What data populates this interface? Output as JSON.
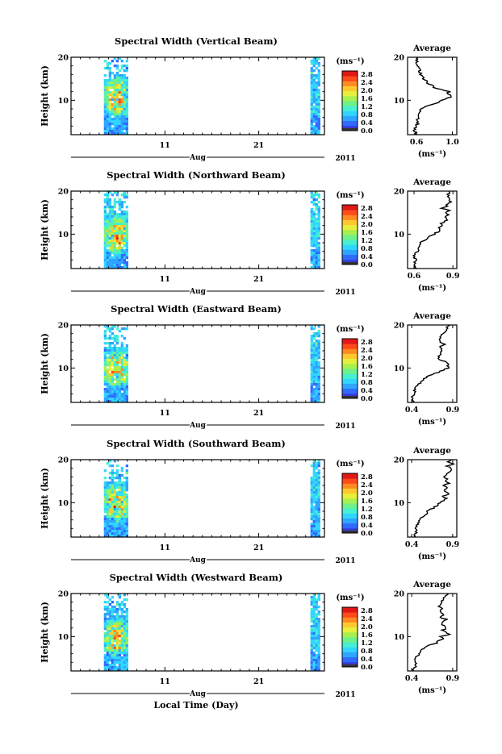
{
  "chart_data": [
    {
      "type": "heatmap",
      "title": "Spectral Width (Vertical Beam)",
      "ylabel": "Height (km)",
      "ylim": [
        2,
        20
      ],
      "y_ticks": [
        "10",
        "20"
      ],
      "x_tick_labels": [
        "11",
        "21"
      ],
      "x_month_label": "Aug",
      "year_label": "2011",
      "colorbar": {
        "unit": "(ms⁻¹)",
        "ticks": [
          "0.0",
          "0.4",
          "0.8",
          "1.2",
          "1.6",
          "2.0",
          "2.4",
          "2.8"
        ]
      },
      "data_spans": [
        [
          4.5,
          7.0
        ],
        [
          26.5,
          27.5
        ]
      ],
      "hotspot": {
        "x": 5.7,
        "height": 11
      },
      "average": {
        "title": "Average",
        "xlabel": "(ms⁻¹)",
        "x_ticks": [
          0.6,
          1.0
        ],
        "x_tick_labels": [
          "0.6",
          "1.0"
        ],
        "xlim": [
          0.5,
          1.05
        ],
        "profile": {
          "height": [
            2,
            3,
            4,
            5,
            6,
            7,
            8,
            8.5,
            9,
            9.5,
            10,
            10.5,
            11,
            11.5,
            12,
            12.5,
            13,
            13.5,
            14,
            14.5,
            15,
            15.5,
            16,
            16.5,
            17,
            17.5,
            18,
            19,
            20
          ],
          "value": [
            0.6,
            0.58,
            0.6,
            0.62,
            0.61,
            0.63,
            0.66,
            0.7,
            0.78,
            0.85,
            0.88,
            0.95,
            1.0,
            0.93,
            0.97,
            0.87,
            0.8,
            0.77,
            0.7,
            0.72,
            0.68,
            0.66,
            0.65,
            0.63,
            0.63,
            0.62,
            0.6,
            0.6,
            0.62
          ]
        }
      }
    },
    {
      "type": "heatmap",
      "title": "Spectral Width (Northward Beam)",
      "ylabel": "Height (km)",
      "ylim": [
        2,
        20
      ],
      "y_ticks": [
        "10",
        "20"
      ],
      "x_tick_labels": [
        "11",
        "21"
      ],
      "x_month_label": "Aug",
      "year_label": "2011",
      "colorbar": {
        "unit": "(ms⁻¹)",
        "ticks": [
          "0.0",
          "0.4",
          "0.8",
          "1.2",
          "1.6",
          "2.0",
          "2.4",
          "2.8"
        ]
      },
      "data_spans": [
        [
          4.5,
          7.0
        ],
        [
          26.5,
          27.5
        ]
      ],
      "hotspot": {
        "x": 5.7,
        "height": 10
      },
      "average": {
        "title": "Average",
        "xlabel": "(ms⁻¹)",
        "x_ticks": [
          0.6,
          0.9
        ],
        "x_tick_labels": [
          "0.6",
          "0.9"
        ],
        "xlim": [
          0.55,
          0.93
        ],
        "profile": {
          "height": [
            2,
            3,
            4,
            5,
            6,
            7,
            8,
            8.5,
            9,
            9.5,
            10,
            10.5,
            11,
            11.5,
            12,
            12.5,
            13,
            13.5,
            14,
            14.5,
            15,
            15.5,
            16,
            16.5,
            17,
            17.5,
            18,
            19,
            19.5,
            20
          ],
          "value": [
            0.62,
            0.6,
            0.61,
            0.6,
            0.63,
            0.64,
            0.65,
            0.67,
            0.7,
            0.72,
            0.76,
            0.78,
            0.8,
            0.79,
            0.82,
            0.81,
            0.84,
            0.86,
            0.83,
            0.86,
            0.84,
            0.87,
            0.82,
            0.85,
            0.86,
            0.88,
            0.87,
            0.86,
            0.87,
            0.86
          ]
        }
      }
    },
    {
      "type": "heatmap",
      "title": "Spectral Width (Eastward Beam)",
      "ylabel": "Height (km)",
      "ylim": [
        2,
        20
      ],
      "y_ticks": [
        "10",
        "20"
      ],
      "x_tick_labels": [
        "11",
        "21"
      ],
      "x_month_label": "Aug",
      "year_label": "2011",
      "colorbar": {
        "unit": "(ms⁻¹)",
        "ticks": [
          "0.0",
          "0.4",
          "0.8",
          "1.2",
          "1.6",
          "2.0",
          "2.4",
          "2.8"
        ]
      },
      "data_spans": [
        [
          4.5,
          7.0
        ],
        [
          26.5,
          27.5
        ]
      ],
      "hotspot": {
        "x": 5.7,
        "height": 10
      },
      "average": {
        "title": "Average",
        "xlabel": "(ms⁻¹)",
        "x_ticks": [
          0.4,
          0.9
        ],
        "x_tick_labels": [
          "0.4",
          "0.9"
        ],
        "xlim": [
          0.35,
          0.95
        ],
        "profile": {
          "height": [
            2,
            3,
            4,
            5,
            6,
            7,
            7.5,
            8,
            8.5,
            9,
            9.5,
            10,
            10.5,
            11,
            11.5,
            12,
            12.5,
            13,
            14,
            15,
            15.5,
            16,
            17,
            18,
            18.5,
            19,
            19.5,
            20
          ],
          "value": [
            0.42,
            0.4,
            0.42,
            0.44,
            0.47,
            0.52,
            0.55,
            0.6,
            0.66,
            0.72,
            0.78,
            0.85,
            0.82,
            0.86,
            0.8,
            0.75,
            0.72,
            0.74,
            0.77,
            0.73,
            0.8,
            0.76,
            0.75,
            0.78,
            0.8,
            0.82,
            0.84,
            0.86
          ]
        }
      }
    },
    {
      "type": "heatmap",
      "title": "Spectral Width (Southward Beam)",
      "ylabel": "Height (km)",
      "ylim": [
        2,
        20
      ],
      "y_ticks": [
        "10",
        "20"
      ],
      "x_tick_labels": [
        "11",
        "21"
      ],
      "x_month_label": "Aug",
      "year_label": "2011",
      "colorbar": {
        "unit": "(ms⁻¹)",
        "ticks": [
          "0.0",
          "0.4",
          "0.8",
          "1.2",
          "1.6",
          "2.0",
          "2.4",
          "2.8"
        ]
      },
      "data_spans": [
        [
          4.5,
          7.0
        ],
        [
          26.5,
          27.5
        ]
      ],
      "hotspot": {
        "x": 5.7,
        "height": 10
      },
      "average": {
        "title": "Average",
        "xlabel": "(ms⁻¹)",
        "x_ticks": [
          0.4,
          0.9
        ],
        "x_tick_labels": [
          "0.4",
          "0.9"
        ],
        "xlim": [
          0.35,
          0.95
        ],
        "profile": {
          "height": [
            2,
            3,
            4,
            5,
            6,
            7,
            8,
            8.5,
            9,
            9.5,
            10,
            10.5,
            11,
            11.5,
            12,
            13,
            13.5,
            14,
            14.5,
            15,
            15.5,
            16,
            16.5,
            17,
            18,
            18.5,
            19,
            19.5,
            20
          ],
          "value": [
            0.42,
            0.46,
            0.44,
            0.48,
            0.5,
            0.55,
            0.6,
            0.64,
            0.68,
            0.72,
            0.75,
            0.78,
            0.82,
            0.78,
            0.85,
            0.8,
            0.82,
            0.78,
            0.85,
            0.8,
            0.84,
            0.78,
            0.82,
            0.86,
            0.88,
            0.84,
            0.9,
            0.82,
            0.9
          ]
        }
      }
    },
    {
      "type": "heatmap",
      "title": "Spectral Width (Westward Beam)",
      "ylabel": "Height (km)",
      "ylim": [
        2,
        20
      ],
      "y_ticks": [
        "10",
        "20"
      ],
      "x_tick_labels": [
        "11",
        "21"
      ],
      "x_month_label": "Aug",
      "year_label": "2011",
      "colorbar": {
        "unit": "(ms⁻¹)",
        "ticks": [
          "0.0",
          "0.4",
          "0.8",
          "1.2",
          "1.6",
          "2.0",
          "2.4",
          "2.8"
        ]
      },
      "data_spans": [
        [
          4.5,
          7.0
        ],
        [
          26.5,
          27.5
        ]
      ],
      "hotspot": {
        "x": 5.7,
        "height": 10
      },
      "xlabel": "Local Time (Day)",
      "average": {
        "title": "Average",
        "xlabel": "(ms⁻¹)",
        "x_ticks": [
          0.4,
          0.9
        ],
        "x_tick_labels": [
          "0.4",
          "0.9"
        ],
        "xlim": [
          0.35,
          0.95
        ],
        "profile": {
          "height": [
            2,
            3,
            4,
            5,
            6,
            7,
            7.5,
            8,
            8.5,
            9,
            9.5,
            10,
            10.5,
            11,
            11.5,
            12,
            13,
            13.5,
            14,
            14.5,
            15,
            16,
            16.5,
            17,
            18,
            19,
            19.5,
            20
          ],
          "value": [
            0.42,
            0.44,
            0.46,
            0.45,
            0.5,
            0.53,
            0.58,
            0.62,
            0.7,
            0.72,
            0.8,
            0.76,
            0.86,
            0.82,
            0.78,
            0.82,
            0.76,
            0.8,
            0.82,
            0.74,
            0.8,
            0.75,
            0.78,
            0.72,
            0.76,
            0.8,
            0.82,
            0.85
          ]
        }
      }
    }
  ],
  "colormap": [
    "#2b2b8f",
    "#3a3ad6",
    "#2f6bff",
    "#2fa5ff",
    "#31d6ff",
    "#46f0d0",
    "#6ef08a",
    "#a8f050",
    "#e6f03a",
    "#ffc82e",
    "#ff8a22",
    "#ff4a1a",
    "#e01818"
  ]
}
